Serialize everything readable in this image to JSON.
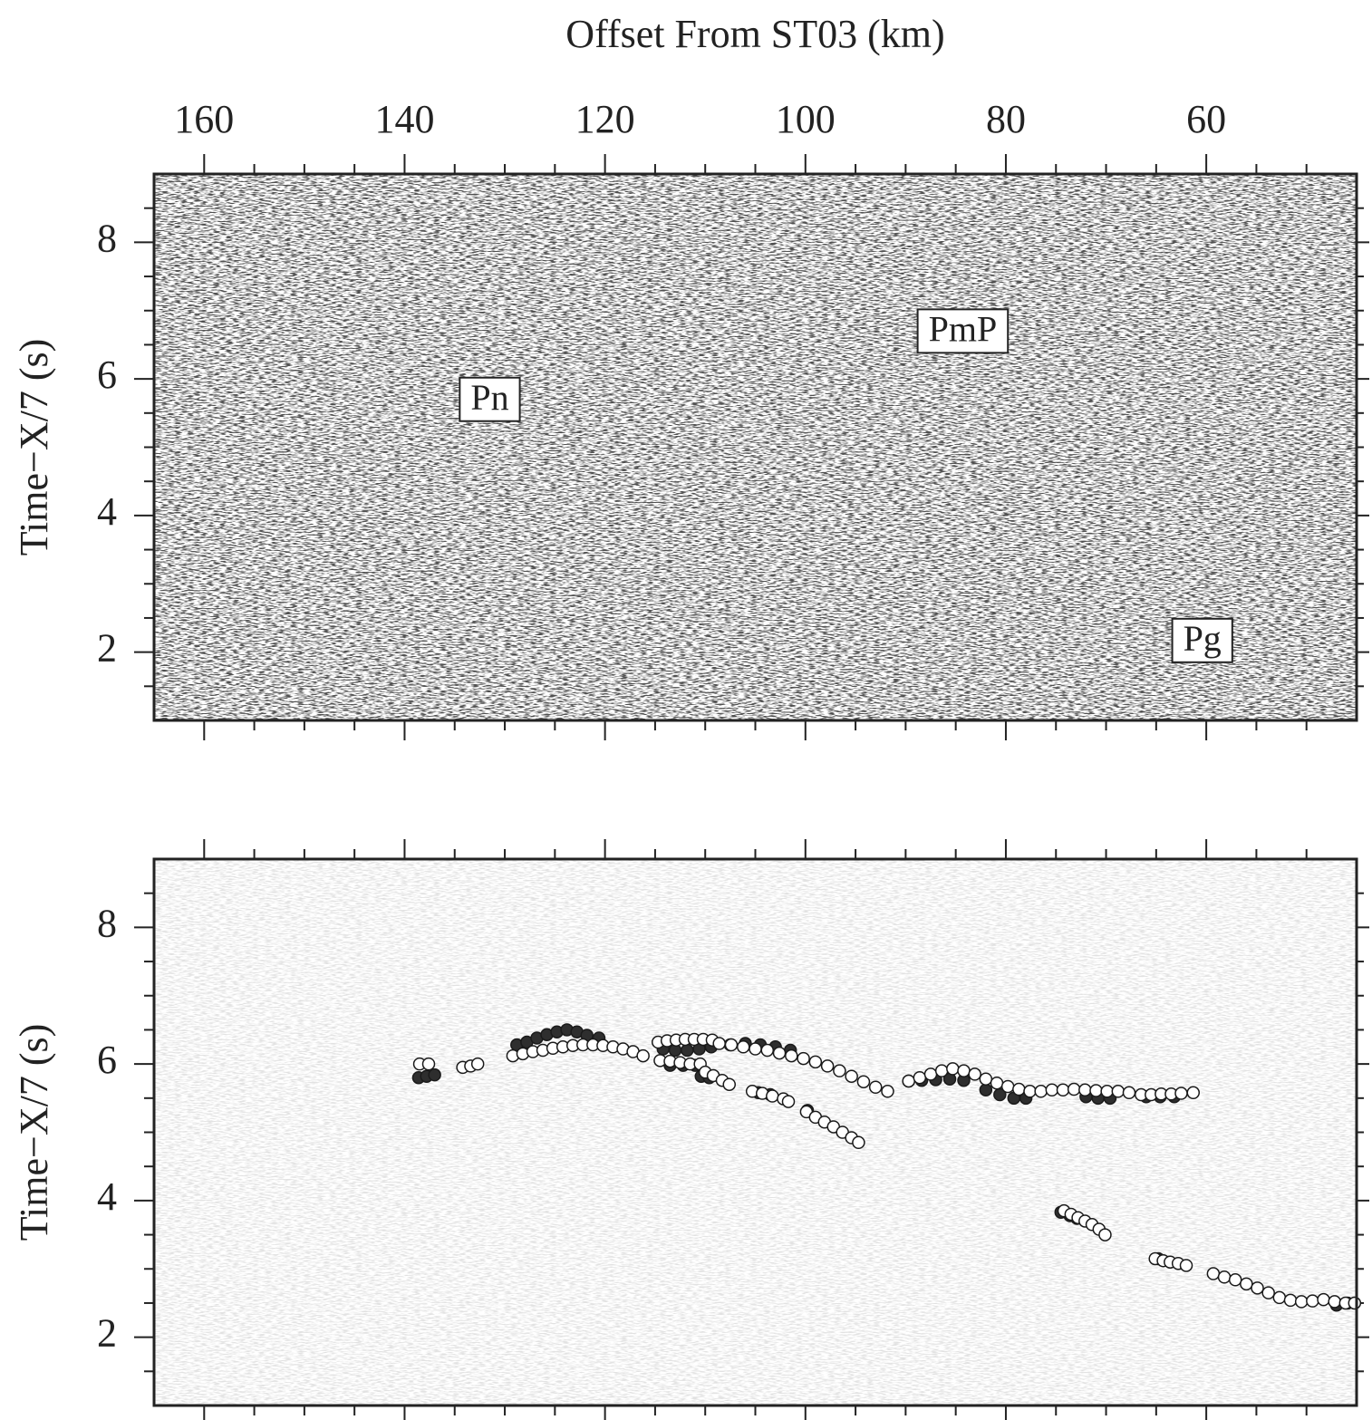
{
  "chart_data": [
    {
      "type": "section",
      "xlabel": "Offset From ST03 (km)",
      "ylabel": "Time−X/7 (s)",
      "xlim": [
        165,
        45
      ],
      "ylim": [
        1,
        9
      ],
      "xticks": [
        160,
        140,
        120,
        100,
        80,
        60
      ],
      "xminorticks": [
        155,
        150,
        145,
        135,
        130,
        125,
        115,
        110,
        105,
        95,
        90,
        85,
        75,
        70,
        65,
        55,
        50
      ],
      "yticks": [
        2,
        4,
        6,
        8
      ],
      "yminorticks": [
        1.5,
        2.5,
        3,
        3.5,
        4.5,
        5,
        5.5,
        6.5,
        7,
        7.5,
        8.5
      ],
      "xticklabels": true,
      "faded": false,
      "annotations": [
        {
          "text": "Pn",
          "x": 131.5,
          "y": 5.7
        },
        {
          "text": "PmP",
          "x": 84.3,
          "y": 6.7
        },
        {
          "text": "Pg",
          "x": 60.4,
          "y": 2.17
        }
      ]
    },
    {
      "type": "scatter",
      "ylabel": "Time−X/7 (s)",
      "xlim": [
        165,
        45
      ],
      "ylim": [
        1,
        9
      ],
      "xticks": [
        160,
        140,
        120,
        100,
        80,
        60
      ],
      "xminorticks": [
        155,
        150,
        145,
        135,
        130,
        125,
        115,
        110,
        105,
        95,
        90,
        85,
        75,
        70,
        65,
        55,
        50
      ],
      "yticks": [
        2,
        4,
        6,
        8
      ],
      "yminorticks": [
        1.5,
        2.5,
        3,
        3.5,
        4.5,
        5,
        5.5,
        6.5,
        7,
        7.5,
        8.5
      ],
      "xticklabels": false,
      "faded": true,
      "series": [
        {
          "color": "#2e2e2e",
          "edgecolor": "#1a1a1a",
          "x": [
            138.6,
            137.8,
            137.0,
            128.8,
            127.8,
            126.8,
            125.8,
            124.8,
            123.8,
            122.8,
            121.8,
            120.6,
            114.2,
            113.0,
            111.8,
            110.6,
            109.4,
            113.5,
            112.2,
            111.0,
            107.5,
            106.0,
            104.5,
            103.0,
            101.5,
            89.7,
            88.4,
            87.0,
            85.6,
            84.2,
            82.0,
            80.6,
            79.2,
            78.0,
            72.0,
            70.8,
            69.6,
            66.0,
            64.6,
            63.2,
            110.4,
            109.6,
            104.7,
            103.5,
            99.8,
            74.5,
            73.6,
            72.9,
            64.8,
            47.0,
            45.9
          ],
          "values": [
            5.8,
            5.82,
            5.84,
            6.28,
            6.32,
            6.38,
            6.43,
            6.47,
            6.5,
            6.47,
            6.42,
            6.38,
            6.22,
            6.2,
            6.2,
            6.22,
            6.25,
            5.98,
            5.98,
            5.98,
            6.28,
            6.3,
            6.28,
            6.25,
            6.2,
            5.75,
            5.76,
            5.77,
            5.78,
            5.76,
            5.62,
            5.55,
            5.5,
            5.5,
            5.52,
            5.5,
            5.5,
            5.52,
            5.52,
            5.52,
            5.82,
            5.8,
            5.58,
            5.55,
            5.32,
            3.83,
            3.78,
            3.74,
            3.15,
            2.47,
            2.5
          ]
        },
        {
          "color": "#ffffff",
          "edgecolor": "#1a1a1a",
          "x": [
            138.5,
            137.6,
            134.2,
            133.4,
            132.7,
            129.2,
            128.2,
            127.2,
            126.2,
            125.2,
            124.2,
            123.2,
            122.2,
            121.2,
            120.2,
            119.2,
            118.2,
            117.2,
            116.2,
            114.5,
            113.5,
            112.5,
            111.5,
            110.5,
            114.7,
            113.8,
            112.9,
            112.0,
            111.1,
            110.2,
            109.3,
            108.6,
            107.4,
            106.2,
            105.0,
            103.8,
            102.6,
            101.4,
            100.2,
            99.0,
            97.8,
            96.6,
            95.4,
            94.2,
            93.0,
            91.8,
            89.7,
            88.6,
            87.5,
            86.4,
            85.3,
            84.2,
            83.1,
            82.0,
            80.9,
            79.8,
            78.7,
            77.6,
            76.5,
            75.4,
            74.3,
            73.2,
            72.1,
            71.0,
            69.9,
            68.8,
            67.7,
            66.5,
            65.5,
            64.5,
            63.5,
            62.5,
            61.3,
            110.0,
            109.2,
            108.3,
            107.6,
            105.3,
            104.3,
            103.3,
            102.2,
            101.7,
            99.9,
            99.0,
            98.1,
            97.2,
            96.3,
            95.4,
            94.7,
            74.2,
            73.5,
            72.8,
            72.1,
            71.4,
            70.7,
            70.1,
            65.1,
            64.3,
            63.6,
            62.8,
            62.0,
            59.3,
            58.2,
            57.1,
            56.0,
            54.9,
            53.8,
            52.7,
            51.6,
            50.5,
            49.4,
            48.3,
            47.2,
            46.1,
            45.2
          ],
          "values": [
            6.0,
            6.0,
            5.95,
            5.97,
            6.0,
            6.12,
            6.15,
            6.18,
            6.2,
            6.23,
            6.25,
            6.27,
            6.28,
            6.28,
            6.27,
            6.25,
            6.22,
            6.18,
            6.12,
            6.05,
            6.04,
            6.02,
            6.0,
            6.0,
            6.32,
            6.34,
            6.35,
            6.36,
            6.36,
            6.36,
            6.35,
            6.3,
            6.28,
            6.25,
            6.22,
            6.2,
            6.16,
            6.12,
            6.08,
            6.03,
            5.97,
            5.9,
            5.82,
            5.74,
            5.66,
            5.6,
            5.75,
            5.8,
            5.85,
            5.9,
            5.93,
            5.9,
            5.85,
            5.78,
            5.72,
            5.67,
            5.63,
            5.6,
            5.6,
            5.62,
            5.62,
            5.63,
            5.62,
            5.61,
            5.6,
            5.6,
            5.58,
            5.55,
            5.55,
            5.56,
            5.56,
            5.57,
            5.58,
            5.88,
            5.83,
            5.76,
            5.7,
            5.6,
            5.57,
            5.53,
            5.49,
            5.45,
            5.3,
            5.22,
            5.15,
            5.08,
            5.0,
            4.92,
            4.85,
            3.85,
            3.8,
            3.75,
            3.7,
            3.65,
            3.58,
            3.5,
            3.15,
            3.12,
            3.1,
            3.08,
            3.05,
            2.93,
            2.88,
            2.84,
            2.78,
            2.72,
            2.65,
            2.58,
            2.54,
            2.52,
            2.53,
            2.55,
            2.52,
            2.5,
            2.5
          ]
        }
      ]
    }
  ]
}
